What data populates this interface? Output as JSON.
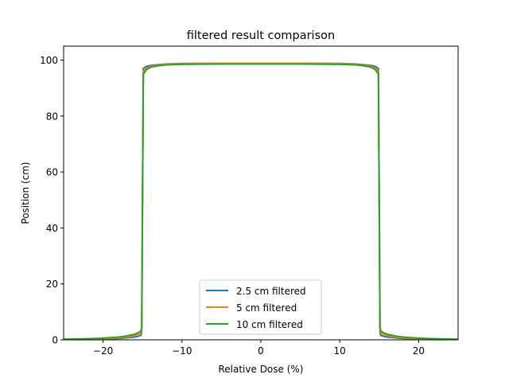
{
  "chart_data": {
    "type": "line",
    "title": "filtered result comparison",
    "xlabel": "Relative Dose (%)",
    "ylabel": "Position (cm)",
    "xlim": [
      -25,
      25
    ],
    "ylim": [
      0,
      105
    ],
    "xticks": [
      -20,
      -10,
      0,
      10,
      20
    ],
    "xtick_labels": [
      "−20",
      "−10",
      "0",
      "10",
      "20"
    ],
    "yticks": [
      0,
      20,
      40,
      60,
      80,
      100
    ],
    "ytick_labels": [
      "0",
      "20",
      "40",
      "60",
      "80",
      "100"
    ],
    "grid": false,
    "legend_position": "lower-center",
    "series": [
      {
        "name": "2.5 cm filtered",
        "color": "#1f77b4",
        "x": [
          -25,
          -22,
          -20,
          -18,
          -17,
          -16,
          -15.5,
          -15.2,
          -15.1,
          -15.0,
          -14.9,
          -14.5,
          -14,
          -13,
          -12,
          -10,
          -5,
          0,
          5,
          10,
          12,
          13,
          14,
          14.5,
          14.9,
          15.0,
          15.1,
          15.2,
          15.5,
          16,
          17,
          18,
          20,
          22,
          25
        ],
        "y": [
          0.1,
          0.2,
          0.3,
          0.5,
          0.7,
          1.0,
          1.3,
          1.6,
          2.5,
          50,
          97.0,
          97.8,
          98.1,
          98.4,
          98.6,
          98.8,
          98.9,
          98.9,
          98.9,
          98.8,
          98.6,
          98.4,
          98.1,
          97.8,
          97.0,
          50,
          2.5,
          1.6,
          1.3,
          1.0,
          0.7,
          0.5,
          0.3,
          0.2,
          0.1
        ]
      },
      {
        "name": "5 cm filtered",
        "color": "#ff7f0e",
        "x": [
          -25,
          -22,
          -20,
          -18,
          -17,
          -16,
          -15.5,
          -15.2,
          -15.1,
          -15.0,
          -14.9,
          -14.5,
          -14,
          -13,
          -12,
          -10,
          -5,
          0,
          5,
          10,
          12,
          13,
          14,
          14.5,
          14.9,
          15.0,
          15.1,
          15.2,
          15.5,
          16,
          17,
          18,
          20,
          22,
          25
        ],
        "y": [
          0.1,
          0.2,
          0.4,
          0.7,
          1.0,
          1.5,
          2.0,
          2.5,
          3.5,
          50,
          96.0,
          97.2,
          97.8,
          98.2,
          98.5,
          98.7,
          98.9,
          98.9,
          98.9,
          98.7,
          98.5,
          98.2,
          97.8,
          97.2,
          96.0,
          50,
          3.5,
          2.5,
          2.0,
          1.5,
          1.0,
          0.7,
          0.4,
          0.2,
          0.1
        ]
      },
      {
        "name": "10 cm filtered",
        "color": "#2ca02c",
        "x": [
          -25,
          -22,
          -20,
          -18,
          -17,
          -16,
          -15.5,
          -15.2,
          -15.1,
          -15.0,
          -14.9,
          -14.5,
          -14,
          -13,
          -12,
          -10,
          -5,
          0,
          5,
          10,
          12,
          13,
          14,
          14.5,
          14.9,
          15.0,
          15.1,
          15.2,
          15.5,
          16,
          17,
          18,
          20,
          22,
          25
        ],
        "y": [
          0.2,
          0.4,
          0.6,
          1.0,
          1.4,
          2.0,
          2.6,
          3.2,
          4.5,
          50,
          95.0,
          96.6,
          97.5,
          98.0,
          98.3,
          98.5,
          98.6,
          98.6,
          98.6,
          98.5,
          98.3,
          98.0,
          97.5,
          96.6,
          95.0,
          50,
          4.5,
          3.2,
          2.6,
          2.0,
          1.4,
          1.0,
          0.6,
          0.4,
          0.2
        ]
      }
    ]
  }
}
